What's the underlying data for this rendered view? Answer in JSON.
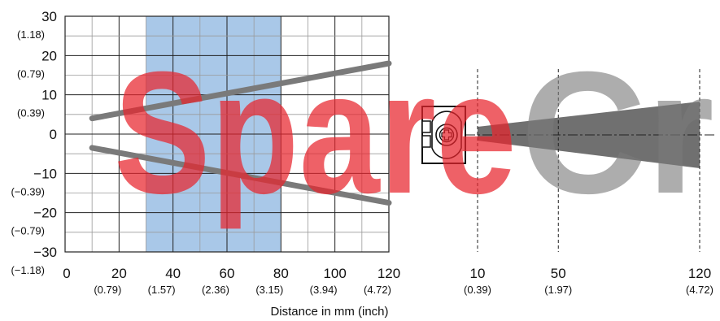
{
  "chart_data": {
    "type": "line",
    "xlabel": "Distance in mm (inch)",
    "ylabel": "",
    "xlim": [
      0,
      120
    ],
    "ylim": [
      -30,
      30
    ],
    "grid": true,
    "x_ticks": [
      {
        "value": 0,
        "label": "0",
        "sub": ""
      },
      {
        "value": 20,
        "label": "20",
        "sub": "(0.79)"
      },
      {
        "value": 40,
        "label": "40",
        "sub": "(1.57)"
      },
      {
        "value": 60,
        "label": "60",
        "sub": "(2.36)"
      },
      {
        "value": 80,
        "label": "80",
        "sub": "(3.15)"
      },
      {
        "value": 100,
        "label": "100",
        "sub": "(3.94)"
      },
      {
        "value": 120,
        "label": "120",
        "sub": "(4.72)"
      }
    ],
    "y_ticks": [
      {
        "value": 30,
        "label": "30",
        "sub": "(1.18)"
      },
      {
        "value": 20,
        "label": "20",
        "sub": "(0.79)"
      },
      {
        "value": 10,
        "label": "10",
        "sub": "(0.39)"
      },
      {
        "value": 0,
        "label": "0",
        "sub": ""
      },
      {
        "value": -10,
        "label": "−10",
        "sub": "(−0.39)"
      },
      {
        "value": -20,
        "label": "−20",
        "sub": "(−0.79)"
      },
      {
        "value": -30,
        "label": "−30",
        "sub": "(−1.18)"
      }
    ],
    "highlight_band": {
      "x_from": 30,
      "x_to": 80,
      "color": "#a9c8e8"
    },
    "series": [
      {
        "x": [
          10,
          120
        ],
        "y": [
          4,
          18
        ],
        "color": "#7a7a7a"
      },
      {
        "x": [
          10,
          120
        ],
        "y": [
          -3.5,
          -17.5
        ],
        "color": "#7a7a7a"
      }
    ]
  },
  "beam_diagram": {
    "markers": [
      {
        "value": 10,
        "label": "10",
        "sub": "(0.39)"
      },
      {
        "value": 50,
        "label": "50",
        "sub": "(1.97)"
      },
      {
        "value": 120,
        "label": "120",
        "sub": "(4.72)"
      }
    ],
    "beam_color": "#707070"
  },
  "watermark": {
    "text": "SpareCr",
    "colors": [
      "#e8242c",
      "#7a7a7a"
    ]
  }
}
